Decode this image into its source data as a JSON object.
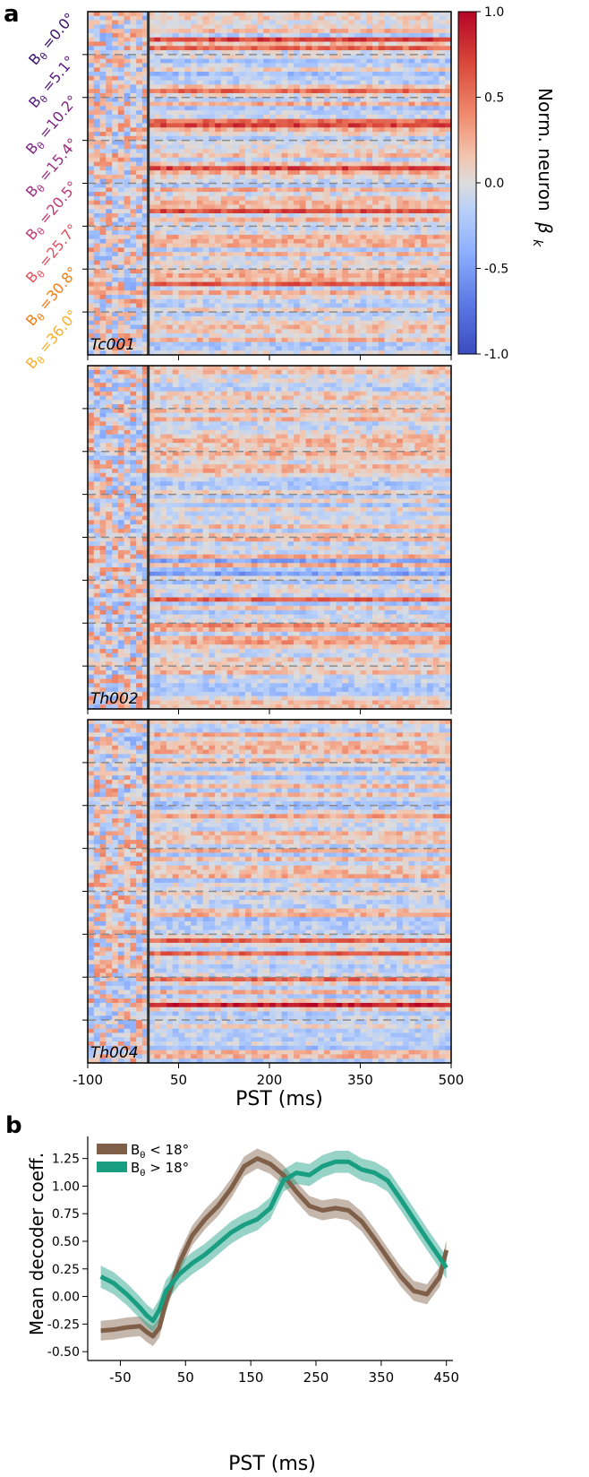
{
  "panel_labels": {
    "a": "a",
    "b": "b"
  },
  "colorbar": {
    "label": "Norm. neuron",
    "label_symbol": "β",
    "label_sub": "k",
    "ticks": [
      "1.0",
      "0.5",
      "0.0",
      "-0.5",
      "-1.0"
    ],
    "colormap": "coolwarm",
    "range": [
      -1.0,
      1.0
    ]
  },
  "row_labels": [
    {
      "text": "B",
      "sub": "θ",
      "rest": " =0.0°",
      "color": "#3b0f70"
    },
    {
      "text": "B",
      "sub": "θ",
      "rest": " =5.1°",
      "color": "#5a1a80"
    },
    {
      "text": "B",
      "sub": "θ",
      "rest": " =10.2°",
      "color": "#7b2382"
    },
    {
      "text": "B",
      "sub": "θ",
      "rest": " =15.4°",
      "color": "#9c2e7f"
    },
    {
      "text": "B",
      "sub": "θ",
      "rest": " =20.5°",
      "color": "#c03a76"
    },
    {
      "text": "B",
      "sub": "θ",
      "rest": " =25.7°",
      "color": "#e0505e"
    },
    {
      "text": "B",
      "sub": "θ",
      "rest": " =30.8°",
      "color": "#f57d15"
    },
    {
      "text": "B",
      "sub": "θ",
      "rest": " =36.0°",
      "color": "#f7b12b"
    }
  ],
  "heatmap_names": [
    "Tc001",
    "Th002",
    "Th004"
  ],
  "heatmap_xaxis": {
    "label": "PST (ms)",
    "ticks": [
      "-100",
      "50",
      "200",
      "350",
      "500"
    ],
    "tick_values": [
      -100,
      50,
      200,
      350,
      500
    ],
    "range": [
      -100,
      500
    ],
    "stim_onset": 0
  },
  "chart_data": [
    {
      "type": "heatmap",
      "name": "Tc001",
      "groups": 8,
      "colormap": "coolwarm",
      "zlim": [
        -1.0,
        1.0
      ],
      "x_range_ms": [
        -100,
        500
      ]
    },
    {
      "type": "heatmap",
      "name": "Th002",
      "groups": 8,
      "colormap": "coolwarm",
      "zlim": [
        -1.0,
        1.0
      ],
      "x_range_ms": [
        -100,
        500
      ]
    },
    {
      "type": "heatmap",
      "name": "Th004",
      "groups": 8,
      "colormap": "coolwarm",
      "zlim": [
        -1.0,
        1.0
      ],
      "x_range_ms": [
        -100,
        500
      ]
    },
    {
      "type": "line",
      "xlabel": "PST (ms)",
      "ylabel": "Mean decoder coeff.",
      "xlim": [
        -100,
        460
      ],
      "ylim": [
        -0.58,
        1.45
      ],
      "xticks": [
        "-50",
        "50",
        "150",
        "250",
        "350",
        "450"
      ],
      "xtick_values": [
        -50,
        50,
        150,
        250,
        350,
        450
      ],
      "yticks": [
        "1.25",
        "1.00",
        "0.75",
        "0.50",
        "0.25",
        "0.00",
        "-0.25",
        "-0.50"
      ],
      "ytick_values": [
        1.25,
        1.0,
        0.75,
        0.5,
        0.25,
        0.0,
        -0.25,
        -0.5
      ],
      "series": [
        {
          "name": "B",
          "name_sub": "θ",
          "name_rest": " < 18°",
          "color": "#7f5f48",
          "x": [
            -80,
            -60,
            -40,
            -20,
            -10,
            0,
            10,
            20,
            40,
            60,
            80,
            100,
            120,
            140,
            160,
            180,
            200,
            220,
            240,
            260,
            280,
            300,
            320,
            340,
            360,
            380,
            400,
            420,
            440,
            450
          ],
          "y": [
            -0.31,
            -0.3,
            -0.28,
            -0.27,
            -0.32,
            -0.36,
            -0.28,
            -0.05,
            0.3,
            0.55,
            0.7,
            0.82,
            0.98,
            1.18,
            1.25,
            1.2,
            1.1,
            0.95,
            0.82,
            0.78,
            0.8,
            0.78,
            0.68,
            0.52,
            0.35,
            0.18,
            0.05,
            0.02,
            0.18,
            0.42
          ],
          "band": 0.09
        },
        {
          "name": "B",
          "name_sub": "θ",
          "name_rest": " > 18°",
          "color": "#1a9e82",
          "x": [
            -80,
            -60,
            -40,
            -20,
            -10,
            0,
            10,
            20,
            40,
            60,
            80,
            100,
            120,
            140,
            160,
            180,
            200,
            220,
            240,
            260,
            280,
            300,
            320,
            340,
            360,
            380,
            400,
            420,
            440,
            450
          ],
          "y": [
            0.18,
            0.12,
            0.02,
            -0.1,
            -0.17,
            -0.22,
            -0.12,
            0.05,
            0.2,
            0.3,
            0.38,
            0.48,
            0.58,
            0.65,
            0.7,
            0.8,
            1.05,
            1.12,
            1.1,
            1.18,
            1.22,
            1.22,
            1.15,
            1.12,
            1.05,
            0.88,
            0.7,
            0.52,
            0.35,
            0.26
          ],
          "band": 0.1
        }
      ]
    }
  ]
}
